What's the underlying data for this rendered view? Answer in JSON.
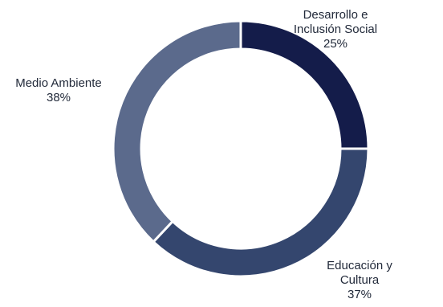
{
  "chart_data": {
    "type": "pie",
    "variant": "donut",
    "title": "",
    "categories": [
      "Desarrollo e Inclusión Social",
      "Educación y Cultura",
      "Medio Ambiente"
    ],
    "values": [
      25,
      37,
      38
    ],
    "unit": "%",
    "labels": [
      {
        "lines": [
          "Desarrollo e",
          "Inclusión Social"
        ],
        "value_text": "25%"
      },
      {
        "lines": [
          "Educación y",
          "Cultura"
        ],
        "value_text": "37%"
      },
      {
        "lines": [
          "Medio Ambiente"
        ],
        "value_text": "38%"
      }
    ],
    "colors": [
      "#141c4a",
      "#34466e",
      "#5b6a8c"
    ],
    "start_angle": "12 o'clock",
    "direction": "clockwise",
    "legend": "none"
  }
}
